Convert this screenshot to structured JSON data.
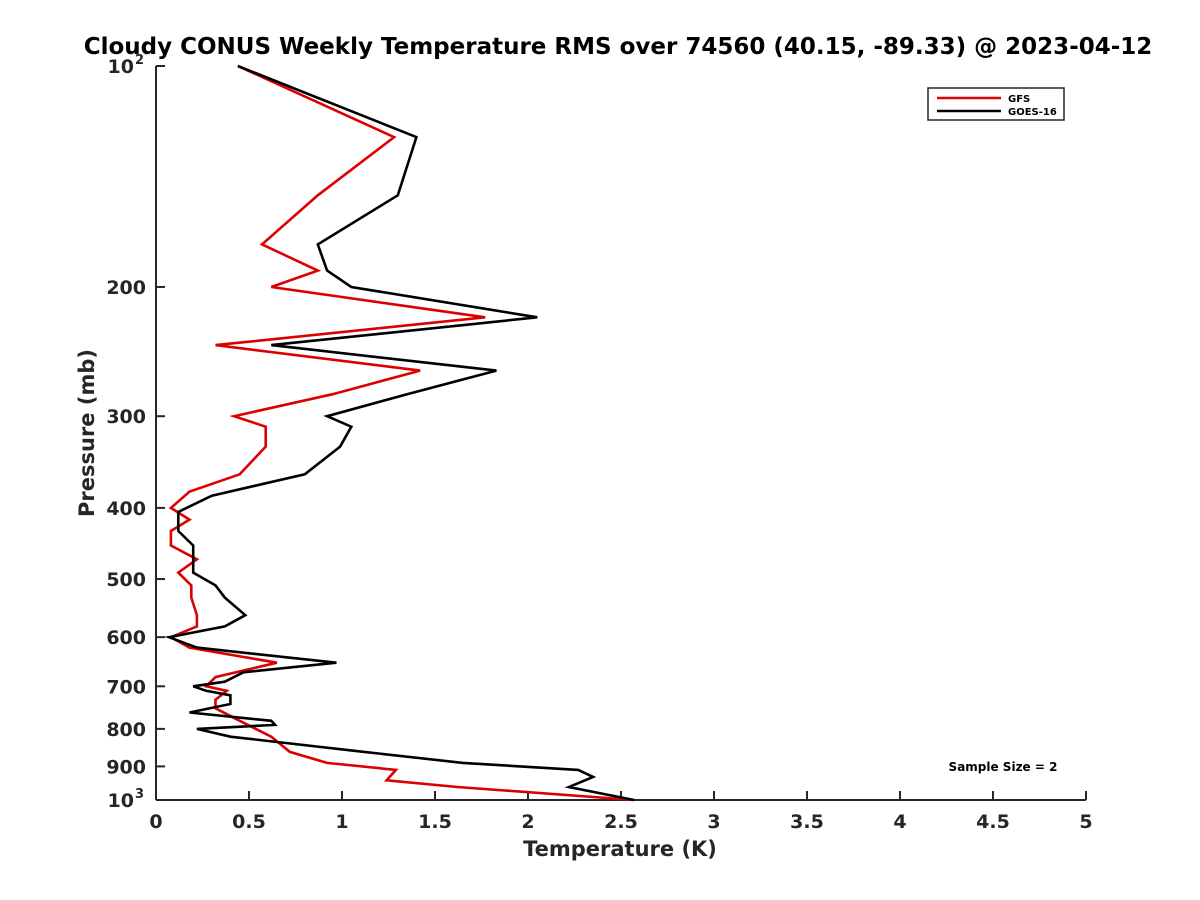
{
  "chart_data": {
    "type": "line",
    "title": "Cloudy CONUS Weekly Temperature RMS over 74560 (40.15, -89.33) @ 2023-04-12",
    "xlabel": "Temperature (K)",
    "ylabel": "Pressure (mb)",
    "xlim": [
      0,
      5
    ],
    "ylim": [
      100,
      1000
    ],
    "yscale": "log",
    "y_reversed": true,
    "grid": false,
    "legend_position": "top-right",
    "x_ticks": [
      "0",
      "0.5",
      "1",
      "1.5",
      "2",
      "2.5",
      "3",
      "3.5",
      "4",
      "4.5",
      "5"
    ],
    "y_ticks": [
      {
        "value": 100,
        "base": "10",
        "exp": "2"
      },
      {
        "value": 200,
        "label": "200"
      },
      {
        "value": 300,
        "label": "300"
      },
      {
        "value": 400,
        "label": "400"
      },
      {
        "value": 500,
        "label": "500"
      },
      {
        "value": 600,
        "label": "600"
      },
      {
        "value": 700,
        "label": "700"
      },
      {
        "value": 800,
        "label": "800"
      },
      {
        "value": 900,
        "label": "900"
      },
      {
        "value": 1000,
        "base": "10",
        "exp": "3"
      }
    ],
    "annotation": "Sample Size = 2",
    "series": [
      {
        "name": "GFS",
        "color": "#dd0000",
        "x": [
          0.44,
          1.28,
          0.87,
          0.57,
          0.87,
          0.62,
          1.77,
          0.32,
          1.42,
          0.95,
          0.42,
          0.59,
          0.59,
          0.45,
          0.18,
          0.08,
          0.18,
          0.08,
          0.08,
          0.22,
          0.12,
          0.19,
          0.19,
          0.22,
          0.22,
          0.08,
          0.18,
          0.65,
          0.32,
          0.27,
          0.38,
          0.32,
          0.32,
          0.45,
          0.62,
          0.72,
          0.92,
          1.29,
          1.24,
          1.62,
          2.57
        ],
        "y": [
          100,
          125,
          150,
          175,
          190,
          200,
          220,
          240,
          260,
          280,
          300,
          310,
          330,
          360,
          380,
          400,
          415,
          430,
          450,
          470,
          490,
          510,
          530,
          560,
          580,
          600,
          620,
          650,
          680,
          700,
          710,
          730,
          750,
          780,
          820,
          860,
          890,
          910,
          940,
          960,
          1000
        ]
      },
      {
        "name": "GOES-16",
        "color": "#000000",
        "x": [
          0.44,
          1.4,
          1.3,
          0.87,
          0.92,
          1.05,
          2.05,
          0.62,
          1.83,
          1.35,
          0.92,
          1.05,
          0.99,
          0.8,
          0.3,
          0.12,
          0.12,
          0.2,
          0.2,
          0.2,
          0.32,
          0.37,
          0.48,
          0.37,
          0.07,
          0.22,
          0.97,
          0.47,
          0.37,
          0.2,
          0.27,
          0.4,
          0.4,
          0.18,
          0.62,
          0.64,
          0.22,
          0.4,
          1.12,
          1.65,
          2.27,
          2.35,
          2.22,
          2.57
        ],
        "y": [
          100,
          125,
          150,
          175,
          190,
          200,
          220,
          240,
          260,
          280,
          300,
          310,
          330,
          360,
          385,
          405,
          430,
          450,
          470,
          490,
          510,
          530,
          560,
          580,
          600,
          620,
          650,
          670,
          690,
          700,
          710,
          720,
          740,
          760,
          780,
          790,
          800,
          820,
          860,
          890,
          910,
          930,
          960,
          1000
        ]
      }
    ]
  }
}
